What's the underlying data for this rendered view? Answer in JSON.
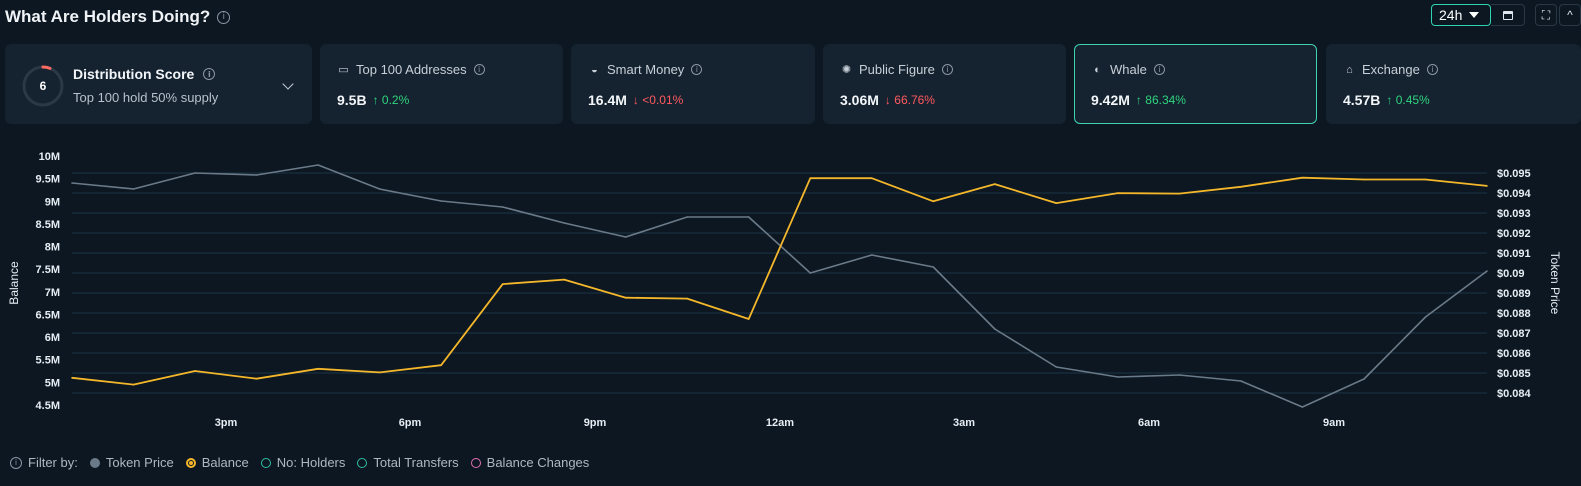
{
  "header": {
    "title": "What Are Holders Doing?",
    "timeframe": "24h"
  },
  "distribution": {
    "score": "6",
    "score_fraction": 0.06,
    "title": "Distribution Score",
    "subtitle": "Top 100 hold 50% supply"
  },
  "cards": [
    {
      "label": "Top 100 Addresses",
      "icon": "money-icon",
      "value": "9.5B",
      "change": "0.2%",
      "direction": "up",
      "active": false
    },
    {
      "label": "Smart Money",
      "icon": "glasses-icon",
      "value": "16.4M",
      "change": "<0.01%",
      "direction": "down",
      "active": false
    },
    {
      "label": "Public Figure",
      "icon": "sparkle-icon",
      "value": "3.06M",
      "change": "66.76%",
      "direction": "down",
      "active": false
    },
    {
      "label": "Whale",
      "icon": "whale-icon",
      "value": "9.42M",
      "change": "86.34%",
      "direction": "up",
      "active": true
    },
    {
      "label": "Exchange",
      "icon": "bank-icon",
      "value": "4.57B",
      "change": "0.45%",
      "direction": "up",
      "active": false
    }
  ],
  "colors": {
    "accent": "#3fd3b0",
    "up": "#2ed47f",
    "down": "#ff5a5f",
    "balance": "#f5b72a",
    "price": "#6b7a88"
  },
  "chart_data": {
    "type": "line",
    "x_ticks": [
      "3pm",
      "6pm",
      "9pm",
      "12am",
      "3am",
      "6am",
      "9am"
    ],
    "y_left": {
      "label": "Balance",
      "ticks": [
        "10M",
        "9.5M",
        "9M",
        "8.5M",
        "8M",
        "7.5M",
        "7M",
        "6.5M",
        "6M",
        "5.5M",
        "5M",
        "4.5M"
      ],
      "range": [
        4500000,
        10000000
      ]
    },
    "y_right": {
      "label": "Token Price",
      "ticks": [
        "$0.095",
        "$0.094",
        "$0.093",
        "$0.092",
        "$0.091",
        "$0.09",
        "$0.089",
        "$0.088",
        "$0.087",
        "$0.086",
        "$0.085",
        "$0.084"
      ],
      "range": [
        0.084,
        0.095
      ]
    },
    "grid": true,
    "series": [
      {
        "name": "Token Price",
        "axis": "right",
        "color": "#6b7a88",
        "values": [
          0.0945,
          0.0942,
          0.095,
          0.0949,
          0.0954,
          0.0942,
          0.0936,
          0.0933,
          0.0925,
          0.0918,
          0.0928,
          0.0928,
          0.09,
          0.0909,
          0.0903,
          0.0872,
          0.0853,
          0.0848,
          0.0849,
          0.0846,
          0.0833,
          0.0847,
          0.0878,
          0.0901
        ]
      },
      {
        "name": "Balance",
        "axis": "left",
        "color": "#f5b72a",
        "values": [
          5100000,
          4950000,
          5250000,
          5080000,
          5300000,
          5220000,
          5380000,
          7170000,
          7270000,
          6870000,
          6850000,
          6400000,
          9510000,
          9510000,
          9000000,
          9380000,
          8960000,
          9180000,
          9170000,
          9320000,
          9520000,
          9480000,
          9480000,
          9340000
        ]
      }
    ]
  },
  "filter": {
    "label": "Filter by:",
    "items": [
      {
        "label": "Token Price",
        "state": "gray"
      },
      {
        "label": "Balance",
        "state": "sel"
      },
      {
        "label": "No: Holders",
        "state": "teal"
      },
      {
        "label": "Total Transfers",
        "state": "teal"
      },
      {
        "label": "Balance Changes",
        "state": "pink"
      }
    ]
  }
}
